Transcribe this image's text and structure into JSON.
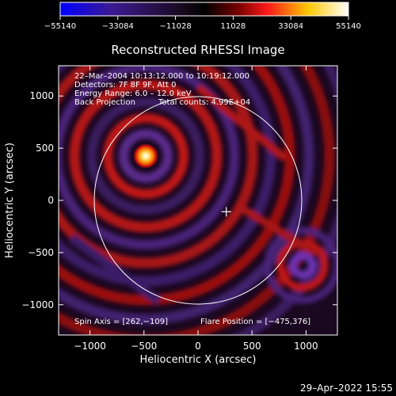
{
  "colorbar": {
    "tick_labels": [
      "−55140",
      "−33084",
      "−11028",
      "11028",
      "33084",
      "55140"
    ],
    "range": [
      -55140,
      55140
    ],
    "colors": [
      "#0000ff",
      "#3b1a90",
      "#000000",
      "#ff1a1a",
      "#ffc800",
      "#ffffff"
    ]
  },
  "plot": {
    "title": "Reconstructed RHESSI Image",
    "xlabel": "Heliocentric X (arcsec)",
    "ylabel": "Heliocentric Y (arcsec)",
    "x_ticks": [
      "−1000",
      "−500",
      "0",
      "500",
      "1000"
    ],
    "y_ticks": [
      "1000",
      "500",
      "0",
      "−500",
      "−1000"
    ],
    "xlim": [
      -1290,
      1290
    ],
    "ylim": [
      -1290,
      1290
    ],
    "info_lines": [
      "22–Mar–2004 10:13:12.000 to 10:19:12.000",
      "Detectors: 7F 8F 9F, Att 0",
      "Energy Range: 6.0 – 12.0 keV"
    ],
    "method": "Back Projection",
    "total_counts": "Total counts: 4.99E+04",
    "spin_axis": "Spin Axis = [262,−109]",
    "flare_position": "Flare Position = [−475,376]",
    "solar_disk_radius_arcsec": 960,
    "spin_axis_xy": [
      262,
      -109
    ],
    "flare_xy": [
      -475,
      376
    ]
  },
  "timestamp": "29–Apr–2022 15:55"
}
